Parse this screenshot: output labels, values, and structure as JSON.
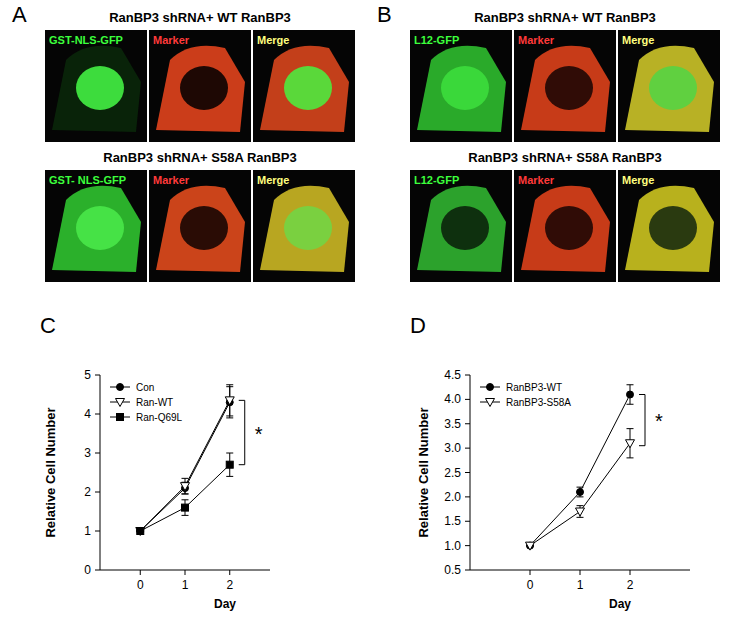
{
  "panels": [
    {
      "letter": "A",
      "rows": [
        {
          "title": "RanBP3 shRNA+ WT RanBP3",
          "labels": [
            "GST-NLS-GFP",
            "Marker",
            "Merge"
          ]
        },
        {
          "title": "RanBP3 shRNA+ S58A RanBP3",
          "labels": [
            "GST- NLS-GFP",
            "Marker",
            "Merge"
          ]
        }
      ]
    },
    {
      "letter": "B",
      "rows": [
        {
          "title": "RanBP3 shRNA+ WT RanBP3",
          "labels": [
            "L12-GFP",
            "Marker",
            "Merge"
          ]
        },
        {
          "title": "RanBP3 shRNA+ S58A RanBP3",
          "labels": [
            "L12-GFP",
            "Marker",
            "Merge"
          ]
        }
      ]
    }
  ],
  "chart_letters": [
    "C",
    "D"
  ],
  "chart_data": [
    {
      "type": "line",
      "x": [
        0,
        1,
        2
      ],
      "xlim": [
        -0.9,
        2.9
      ],
      "xticks": [
        0,
        1,
        2
      ],
      "ylim": [
        0,
        5
      ],
      "yticks": [
        0,
        1,
        2,
        3,
        4,
        5
      ],
      "x_label": "Day",
      "y_label": "Relative Cell Number",
      "legend": "upper left",
      "series": [
        {
          "name": "Con",
          "color": "#000000",
          "marker": "circle",
          "values": [
            1,
            2.1,
            4.3
          ],
          "error": [
            0,
            0.15,
            0.4
          ]
        },
        {
          "name": "Ran-WT",
          "color": "#000000",
          "marker": "triangle-down-open",
          "values": [
            1,
            2.15,
            4.35
          ],
          "error": [
            0,
            0.2,
            0.4
          ]
        },
        {
          "name": "Ran-Q69L",
          "color": "#000000",
          "marker": "square",
          "values": [
            1,
            1.6,
            2.7
          ],
          "error": [
            0,
            0.2,
            0.3
          ]
        }
      ],
      "annotations": [
        {
          "text": "*",
          "x": 2,
          "y_from": 4.35,
          "y_to": 2.7
        }
      ]
    },
    {
      "type": "line",
      "x": [
        0,
        1,
        2
      ],
      "xlim": [
        -1.2,
        3.2
      ],
      "xticks": [
        0,
        1,
        2
      ],
      "ylim": [
        0.5,
        4.5
      ],
      "yticks": [
        0.5,
        {
          "value": 1,
          "label": "1.0"
        },
        1.5,
        {
          "value": 2,
          "label": "2.0"
        },
        2.5,
        {
          "value": 3,
          "label": "3.0"
        },
        3.5,
        {
          "value": 4,
          "label": "4.0"
        },
        4.5
      ],
      "x_label": "Day",
      "y_label": "Relative Cell Number",
      "legend": "upper left",
      "series": [
        {
          "name": "RanBP3-WT",
          "color": "#000000",
          "marker": "circle",
          "values": [
            1,
            2.1,
            4.1
          ],
          "error": [
            0.02,
            0.1,
            0.2
          ]
        },
        {
          "name": "RanBP3-S58A",
          "color": "#000000",
          "marker": "triangle-down-open",
          "values": [
            1,
            1.7,
            3.1
          ],
          "error": [
            0,
            0.12,
            0.3
          ]
        }
      ],
      "annotations": [
        {
          "text": "*",
          "x": 2,
          "y_from": 4.1,
          "y_to": 3.05
        }
      ]
    }
  ]
}
